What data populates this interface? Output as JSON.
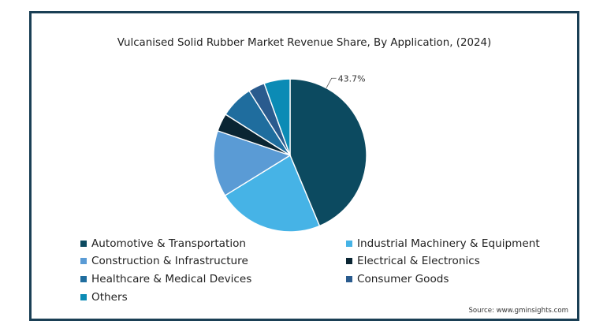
{
  "chart_data": {
    "type": "pie",
    "title": "Vulcanised Solid Rubber Market Revenue Share, By Application, (2024)",
    "slices": [
      {
        "label": "Automotive & Transportation",
        "value": 43.7,
        "color": "#0c4a60",
        "data_label": "43.7%"
      },
      {
        "label": "Industrial Machinery & Equipment",
        "value": 22.5,
        "color": "#46b3e6",
        "data_label": ""
      },
      {
        "label": "Construction & Infrastructure",
        "value": 14.0,
        "color": "#5a9bd5",
        "data_label": ""
      },
      {
        "label": "Electrical & Electronics",
        "value": 3.8,
        "color": "#0a2533",
        "data_label": ""
      },
      {
        "label": "Healthcare & Medical Devices",
        "value": 7.0,
        "color": "#1f6d9e",
        "data_label": ""
      },
      {
        "label": "Consumer Goods",
        "value": 3.5,
        "color": "#2a5b8e",
        "data_label": ""
      },
      {
        "label": "Others",
        "value": 5.5,
        "color": "#0b8bb5",
        "data_label": ""
      }
    ],
    "legend_position": "bottom"
  },
  "source": "Source: www.gminsights.com"
}
